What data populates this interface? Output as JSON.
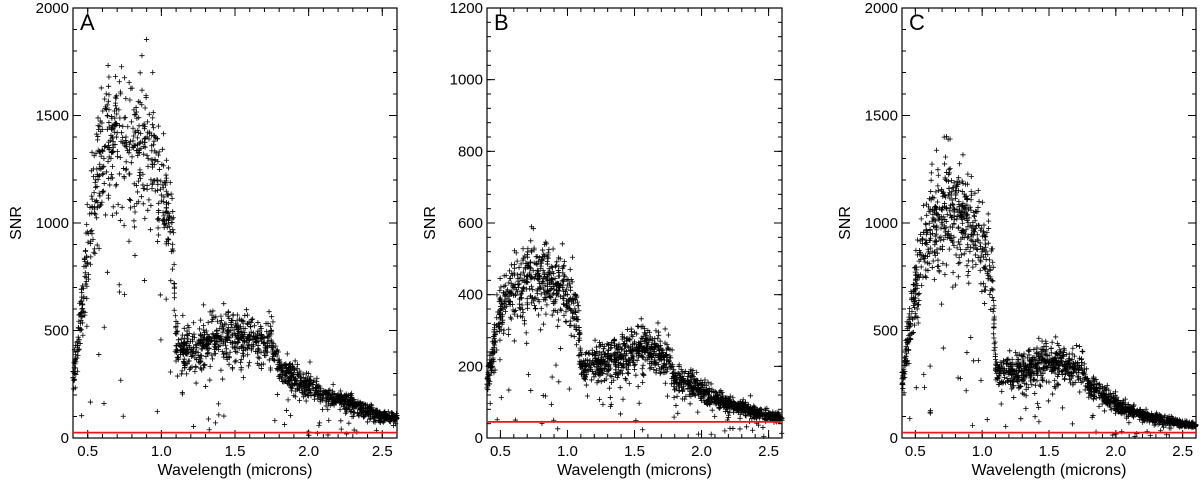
{
  "chart_data": [
    {
      "type": "scatter",
      "panel_label": "A",
      "xlabel": "Wavelength (microns)",
      "ylabel": "SNR",
      "xlim": [
        0.4,
        2.6
      ],
      "ylim": [
        0,
        2000
      ],
      "xticks": [
        0.5,
        1.0,
        1.5,
        2.0,
        2.5
      ],
      "xtick_labels": [
        "0.5",
        "1.0",
        "1.5",
        "2.0",
        "2.5"
      ],
      "yticks": [
        0,
        500,
        1000,
        1500,
        2000
      ],
      "ytick_labels": [
        "0",
        "500",
        "1000",
        "1500",
        "2000"
      ],
      "threshold_line": {
        "y": 25,
        "color": "#e8161b"
      },
      "marker_color": "#000000",
      "series": [
        {
          "x": [
            0.4,
            0.43,
            0.46,
            0.49,
            0.52,
            0.55,
            0.58,
            0.61,
            0.64,
            0.67,
            0.7,
            0.73,
            0.76,
            0.79,
            0.82,
            0.85,
            0.88,
            0.91,
            0.94,
            0.97,
            1.0,
            1.03,
            1.06,
            1.08,
            1.1,
            1.13,
            1.16,
            1.2,
            1.24,
            1.28,
            1.32,
            1.36,
            1.4,
            1.44,
            1.48,
            1.52,
            1.56,
            1.6,
            1.64,
            1.68,
            1.72,
            1.76,
            1.8,
            1.85,
            1.9,
            1.95,
            2.0,
            2.05,
            2.1,
            2.15,
            2.2,
            2.25,
            2.3,
            2.35,
            2.4,
            2.45,
            2.5,
            2.55,
            2.6
          ],
          "y": [
            280,
            420,
            600,
            800,
            960,
            1100,
            1220,
            1300,
            1360,
            1400,
            1420,
            1420,
            1400,
            1380,
            1360,
            1340,
            1320,
            1300,
            1260,
            1200,
            1130,
            1050,
            960,
            870,
            430,
            400,
            400,
            410,
            420,
            430,
            440,
            450,
            460,
            470,
            480,
            480,
            470,
            460,
            450,
            450,
            440,
            420,
            330,
            300,
            280,
            260,
            240,
            220,
            200,
            190,
            180,
            170,
            155,
            140,
            125,
            110,
            100,
            95,
            90
          ]
        }
      ]
    },
    {
      "type": "scatter",
      "panel_label": "B",
      "xlabel": "Wavelength (microns)",
      "ylabel": "SNR",
      "xlim": [
        0.4,
        2.6
      ],
      "ylim": [
        0,
        1200
      ],
      "xticks": [
        0.5,
        1.0,
        1.5,
        2.0,
        2.5
      ],
      "xtick_labels": [
        "0.5",
        "1.0",
        "1.5",
        "2.0",
        "2.5"
      ],
      "yticks": [
        0,
        200,
        400,
        600,
        800,
        1000,
        1200
      ],
      "ytick_labels": [
        "0",
        "200",
        "400",
        "600",
        "800",
        "1000",
        "1200"
      ],
      "threshold_line": {
        "y": 45,
        "color": "#e8161b"
      },
      "marker_color": "#000000",
      "series": [
        {
          "x": [
            0.4,
            0.43,
            0.46,
            0.49,
            0.52,
            0.55,
            0.58,
            0.61,
            0.64,
            0.67,
            0.7,
            0.73,
            0.76,
            0.79,
            0.82,
            0.85,
            0.88,
            0.91,
            0.94,
            0.97,
            1.0,
            1.03,
            1.06,
            1.08,
            1.1,
            1.13,
            1.16,
            1.2,
            1.24,
            1.28,
            1.32,
            1.36,
            1.4,
            1.44,
            1.48,
            1.52,
            1.56,
            1.6,
            1.64,
            1.68,
            1.72,
            1.76,
            1.8,
            1.85,
            1.9,
            1.95,
            2.0,
            2.05,
            2.1,
            2.15,
            2.2,
            2.25,
            2.3,
            2.35,
            2.4,
            2.45,
            2.5,
            2.55,
            2.6
          ],
          "y": [
            150,
            210,
            270,
            320,
            360,
            390,
            410,
            420,
            430,
            440,
            450,
            450,
            450,
            450,
            445,
            440,
            435,
            430,
            420,
            410,
            400,
            380,
            350,
            330,
            210,
            200,
            200,
            205,
            210,
            215,
            220,
            225,
            230,
            235,
            240,
            245,
            245,
            240,
            235,
            230,
            225,
            215,
            170,
            160,
            150,
            140,
            130,
            120,
            110,
            100,
            95,
            90,
            85,
            78,
            70,
            65,
            60,
            57,
            55
          ]
        }
      ]
    },
    {
      "type": "scatter",
      "panel_label": "C",
      "xlabel": "Wavelength (microns)",
      "ylabel": "SNR",
      "xlim": [
        0.4,
        2.6
      ],
      "ylim": [
        0,
        2000
      ],
      "xticks": [
        0.5,
        1.0,
        1.5,
        2.0,
        2.5
      ],
      "xtick_labels": [
        "0.5",
        "1.0",
        "1.5",
        "2.0",
        "2.5"
      ],
      "yticks": [
        0,
        500,
        1000,
        1500,
        2000
      ],
      "ytick_labels": [
        "0",
        "500",
        "1000",
        "1500",
        "2000"
      ],
      "threshold_line": {
        "y": 25,
        "color": "#e8161b"
      },
      "marker_color": "#000000",
      "series": [
        {
          "x": [
            0.4,
            0.43,
            0.46,
            0.49,
            0.52,
            0.55,
            0.58,
            0.61,
            0.64,
            0.67,
            0.7,
            0.73,
            0.76,
            0.79,
            0.82,
            0.85,
            0.88,
            0.91,
            0.94,
            0.97,
            1.0,
            1.03,
            1.06,
            1.08,
            1.1,
            1.13,
            1.16,
            1.2,
            1.24,
            1.28,
            1.32,
            1.36,
            1.4,
            1.44,
            1.48,
            1.52,
            1.56,
            1.6,
            1.64,
            1.68,
            1.72,
            1.76,
            1.8,
            1.85,
            1.9,
            1.95,
            2.0,
            2.05,
            2.1,
            2.15,
            2.2,
            2.25,
            2.3,
            2.35,
            2.4,
            2.45,
            2.5,
            2.55,
            2.6
          ],
          "y": [
            250,
            380,
            520,
            650,
            760,
            850,
            920,
            970,
            1010,
            1040,
            1060,
            1070,
            1070,
            1060,
            1050,
            1040,
            1020,
            990,
            960,
            920,
            880,
            830,
            780,
            730,
            320,
            300,
            300,
            305,
            310,
            315,
            320,
            330,
            340,
            350,
            355,
            350,
            345,
            340,
            330,
            325,
            315,
            300,
            240,
            220,
            200,
            180,
            160,
            145,
            130,
            120,
            110,
            100,
            92,
            85,
            78,
            72,
            65,
            60,
            58
          ]
        }
      ]
    }
  ]
}
